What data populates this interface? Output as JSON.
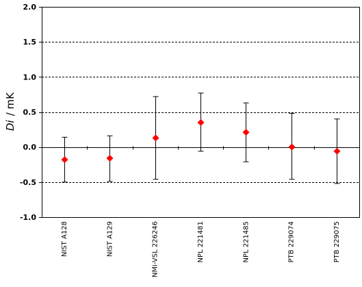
{
  "chart_data": {
    "type": "scatter",
    "categories": [
      "NIST A128",
      "NIST A129",
      "NMi-VSL 226246",
      "NPL 221481",
      "NPL 221485",
      "PTB 229074",
      "PTB 229075"
    ],
    "values": [
      -0.18,
      -0.16,
      0.13,
      0.35,
      0.21,
      0.0,
      -0.06
    ],
    "error_upper": [
      0.14,
      0.16,
      0.72,
      0.77,
      0.63,
      0.48,
      0.4
    ],
    "error_lower": [
      -0.5,
      -0.49,
      -0.46,
      -0.06,
      -0.21,
      -0.46,
      -0.52
    ],
    "ylabel_symbol": "Di",
    "ylabel_unit": "/ mK",
    "ylim": [
      -1.0,
      2.0
    ],
    "yticks": [
      "2.0",
      "1.5",
      "1.0",
      "0.5",
      "0.0",
      "-0.5",
      "-1.0"
    ],
    "ytick_values": [
      2.0,
      1.5,
      1.0,
      0.5,
      0.0,
      -0.5,
      -1.0
    ],
    "gridlines": [
      1.5,
      1.0,
      0.5,
      -0.5
    ],
    "grid": "dashed horizontal",
    "legend": "none",
    "marker": "diamond",
    "marker_color": "#ff0000",
    "errorbar_color": "#000000"
  }
}
